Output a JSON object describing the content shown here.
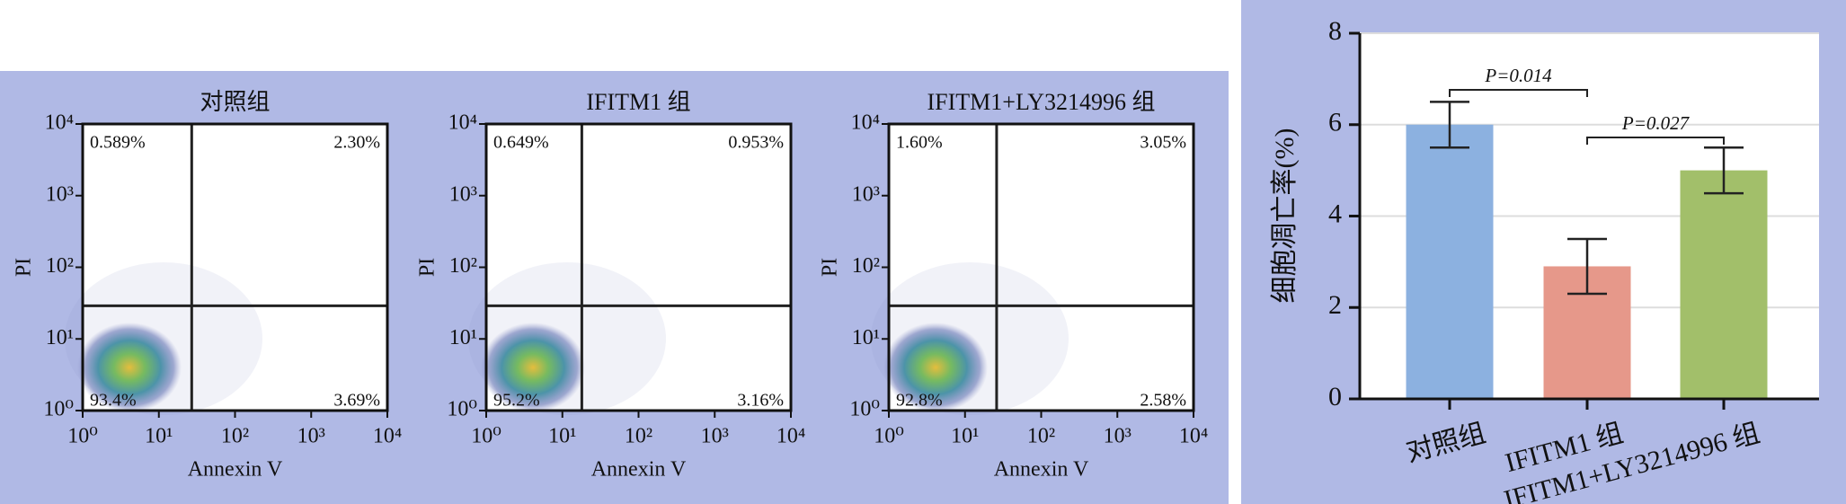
{
  "chart_data": [
    {
      "type": "scatter",
      "title": "对照组",
      "xlabel": "Annexin V",
      "ylabel": "PI",
      "log_scale": true,
      "xlim": [
        1,
        10000
      ],
      "ylim": [
        1,
        10000
      ],
      "xticks": [
        {
          "value": 1,
          "label": "10⁰"
        },
        {
          "value": 10,
          "label": "10¹"
        },
        {
          "value": 100,
          "label": "10²"
        },
        {
          "value": 1000,
          "label": "10³"
        },
        {
          "value": 10000,
          "label": "10⁴"
        }
      ],
      "yticks": [
        {
          "value": 1,
          "label": "10⁰"
        },
        {
          "value": 10,
          "label": "10¹"
        },
        {
          "value": 100,
          "label": "10²"
        },
        {
          "value": 1000,
          "label": "10³"
        },
        {
          "value": 10000,
          "label": "10⁴"
        }
      ],
      "gate_x": 27,
      "gate_y": 29,
      "quadrant_values": [
        0.589,
        2.3,
        93.4,
        3.69
      ],
      "value_labels": [
        "0.589%",
        "2.30%",
        "93.4%",
        "3.69%"
      ]
    },
    {
      "type": "scatter",
      "title": "IFITM1 组",
      "xlabel": "Annexin V",
      "ylabel": "PI",
      "log_scale": true,
      "xlim": [
        1,
        10000
      ],
      "ylim": [
        1,
        10000
      ],
      "xticks": [
        {
          "value": 1,
          "label": "10⁰"
        },
        {
          "value": 10,
          "label": "10¹"
        },
        {
          "value": 100,
          "label": "10²"
        },
        {
          "value": 1000,
          "label": "10³"
        },
        {
          "value": 10000,
          "label": "10⁴"
        }
      ],
      "yticks": [
        {
          "value": 1,
          "label": "10⁰"
        },
        {
          "value": 10,
          "label": "10¹"
        },
        {
          "value": 100,
          "label": "10²"
        },
        {
          "value": 1000,
          "label": "10³"
        },
        {
          "value": 10000,
          "label": "10⁴"
        }
      ],
      "gate_x": 18,
      "gate_y": 29,
      "quadrant_values": [
        0.649,
        0.953,
        95.2,
        3.16
      ],
      "value_labels": [
        "0.649%",
        "0.953%",
        "95.2%",
        "3.16%"
      ]
    },
    {
      "type": "scatter",
      "title": "IFITM1+LY3214996 组",
      "xlabel": "Annexin V",
      "ylabel": "PI",
      "log_scale": true,
      "xlim": [
        1,
        10000
      ],
      "ylim": [
        1,
        10000
      ],
      "xticks": [
        {
          "value": 1,
          "label": "10⁰"
        },
        {
          "value": 10,
          "label": "10¹"
        },
        {
          "value": 100,
          "label": "10²"
        },
        {
          "value": 1000,
          "label": "10³"
        },
        {
          "value": 10000,
          "label": "10⁴"
        }
      ],
      "yticks": [
        {
          "value": 1,
          "label": "10⁰"
        },
        {
          "value": 10,
          "label": "10¹"
        },
        {
          "value": 100,
          "label": "10²"
        },
        {
          "value": 1000,
          "label": "10³"
        },
        {
          "value": 10000,
          "label": "10⁴"
        }
      ],
      "gate_x": 26,
      "gate_y": 29,
      "quadrant_values": [
        1.6,
        3.05,
        92.8,
        2.58
      ],
      "value_labels": [
        "1.60%",
        "3.05%",
        "92.8%",
        "2.58%"
      ]
    },
    {
      "type": "bar",
      "ylabel": "细胞凋亡率(%)",
      "categories": [
        "对照组",
        "IFITM1 组",
        "IFITM1+LY3214996 组"
      ],
      "values": [
        6,
        2.9,
        5
      ],
      "errors": [
        0.5,
        0.6,
        0.5
      ],
      "colors": [
        "#8cb1e0",
        "#e6988a",
        "#a2bf6a"
      ],
      "ylim": [
        0,
        8
      ],
      "yticks": [
        0,
        2,
        4,
        6,
        8
      ],
      "grid": true,
      "annotations": [
        "P=0.014",
        "P=0.027"
      ]
    }
  ]
}
